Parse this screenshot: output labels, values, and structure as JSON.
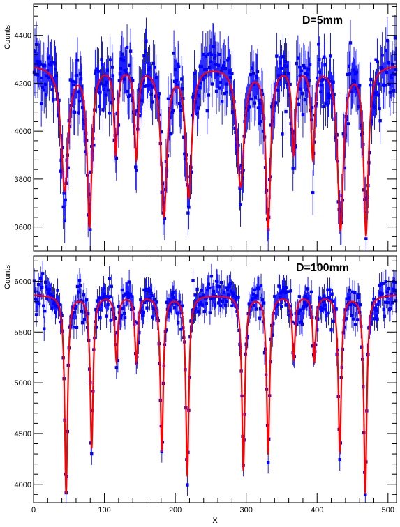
{
  "chart_data": [
    {
      "type": "scatter",
      "title": "D=5mm",
      "ylabel": "Counts",
      "xlabel": "",
      "xlim": [
        0,
        512
      ],
      "ylim": [
        3500,
        4530
      ],
      "yticks": [
        3600,
        3800,
        4000,
        4200,
        4400
      ],
      "xticks": [],
      "grid": false,
      "colors": {
        "data": "#0000ff",
        "fit": "#ff0000"
      },
      "baseline": 4280,
      "dips": [
        {
          "x": 44,
          "depth": 520,
          "width": 6
        },
        {
          "x": 79,
          "depth": 660,
          "width": 4
        },
        {
          "x": 116,
          "depth": 360,
          "width": 3
        },
        {
          "x": 145,
          "depth": 380,
          "width": 3
        },
        {
          "x": 184,
          "depth": 620,
          "width": 5
        },
        {
          "x": 219,
          "depth": 540,
          "width": 5
        },
        {
          "x": 292,
          "depth": 500,
          "width": 6
        },
        {
          "x": 331,
          "depth": 670,
          "width": 4
        },
        {
          "x": 367,
          "depth": 360,
          "width": 3
        },
        {
          "x": 394,
          "depth": 380,
          "width": 3
        },
        {
          "x": 433,
          "depth": 680,
          "width": 5
        },
        {
          "x": 469,
          "depth": 700,
          "width": 4
        }
      ],
      "noise": 70
    },
    {
      "type": "scatter",
      "title": "D=100mm",
      "ylabel": "Counts",
      "xlabel": "X",
      "xlim": [
        0,
        512
      ],
      "ylim": [
        3820,
        6250
      ],
      "yticks": [
        4000,
        4500,
        5000,
        5500,
        6000
      ],
      "xticks": [
        0,
        100,
        200,
        300,
        400,
        500
      ],
      "grid": false,
      "colors": {
        "data": "#0000ff",
        "fit": "#ff0000"
      },
      "baseline": 5870,
      "dips": [
        {
          "x": 46,
          "depth": 1950,
          "width": 2.5
        },
        {
          "x": 82,
          "depth": 1500,
          "width": 2.5
        },
        {
          "x": 117,
          "depth": 650,
          "width": 2.5
        },
        {
          "x": 145,
          "depth": 650,
          "width": 2.5
        },
        {
          "x": 181,
          "depth": 1530,
          "width": 2.5
        },
        {
          "x": 217,
          "depth": 1780,
          "width": 2.5
        },
        {
          "x": 296,
          "depth": 1720,
          "width": 2.5
        },
        {
          "x": 331,
          "depth": 1560,
          "width": 2.5
        },
        {
          "x": 367,
          "depth": 620,
          "width": 2.5
        },
        {
          "x": 396,
          "depth": 650,
          "width": 2.5
        },
        {
          "x": 432,
          "depth": 1540,
          "width": 2.5
        },
        {
          "x": 468,
          "depth": 1950,
          "width": 2.5
        }
      ],
      "noise": 95
    }
  ]
}
